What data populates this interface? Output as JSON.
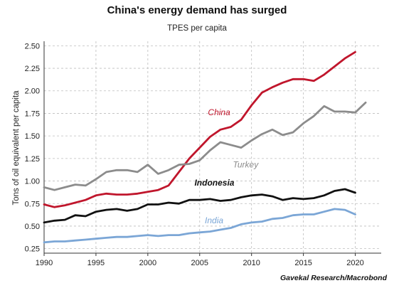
{
  "chart_data": {
    "type": "line",
    "title": "China's energy demand has surged",
    "subtitle": "TPES per capita",
    "ylabel": "Tons of oil equivalent per capita",
    "xlabel": "",
    "source": "Gavekal Research/Macrobond",
    "xlim": [
      1990,
      2022.5
    ],
    "ylim": [
      0.2,
      2.55
    ],
    "x_ticks": [
      1990,
      1995,
      2000,
      2005,
      2010,
      2015,
      2020
    ],
    "y_ticks": [
      0.25,
      0.5,
      0.75,
      1.0,
      1.25,
      1.5,
      1.75,
      2.0,
      2.25,
      2.5
    ],
    "y_tick_labels": [
      "0.25",
      "0.50",
      "0.75",
      "1.00",
      "1.25",
      "1.50",
      "1.75",
      "2.00",
      "2.25",
      "2.50"
    ],
    "grid": true,
    "series": [
      {
        "name": "China",
        "color": "#c0162c",
        "label_at": [
          2005.8,
          1.73
        ],
        "x": [
          1990,
          1991,
          1992,
          1993,
          1994,
          1995,
          1996,
          1997,
          1998,
          1999,
          2000,
          2001,
          2002,
          2003,
          2004,
          2005,
          2006,
          2007,
          2008,
          2009,
          2010,
          2011,
          2012,
          2013,
          2014,
          2015,
          2016,
          2017,
          2018,
          2019,
          2020
        ],
        "y": [
          0.74,
          0.71,
          0.73,
          0.76,
          0.79,
          0.84,
          0.86,
          0.85,
          0.85,
          0.86,
          0.88,
          0.9,
          0.95,
          1.1,
          1.25,
          1.37,
          1.49,
          1.57,
          1.6,
          1.68,
          1.84,
          1.98,
          2.04,
          2.09,
          2.13,
          2.13,
          2.11,
          2.18,
          2.27,
          2.36,
          2.43
        ]
      },
      {
        "name": "Turkey",
        "color": "#8c8c8c",
        "label_at": [
          2008.2,
          1.15
        ],
        "x": [
          1990,
          1991,
          1992,
          1993,
          1994,
          1995,
          1996,
          1997,
          1998,
          1999,
          2000,
          2001,
          2002,
          2003,
          2004,
          2005,
          2006,
          2007,
          2008,
          2009,
          2010,
          2011,
          2012,
          2013,
          2014,
          2015,
          2016,
          2017,
          2018,
          2019,
          2020,
          2021
        ],
        "y": [
          0.93,
          0.9,
          0.93,
          0.96,
          0.95,
          1.02,
          1.1,
          1.12,
          1.12,
          1.1,
          1.18,
          1.08,
          1.12,
          1.18,
          1.19,
          1.23,
          1.34,
          1.43,
          1.4,
          1.37,
          1.45,
          1.52,
          1.57,
          1.51,
          1.54,
          1.64,
          1.72,
          1.83,
          1.77,
          1.77,
          1.76,
          1.87
        ]
      },
      {
        "name": "Indonesia",
        "color": "#111111",
        "label_at": [
          2004.5,
          0.95
        ],
        "x": [
          1990,
          1991,
          1992,
          1993,
          1994,
          1995,
          1996,
          1997,
          1998,
          1999,
          2000,
          2001,
          2002,
          2003,
          2004,
          2005,
          2006,
          2007,
          2008,
          2009,
          2010,
          2011,
          2012,
          2013,
          2014,
          2015,
          2016,
          2017,
          2018,
          2019,
          2020
        ],
        "y": [
          0.54,
          0.56,
          0.57,
          0.62,
          0.61,
          0.66,
          0.68,
          0.69,
          0.67,
          0.69,
          0.74,
          0.74,
          0.76,
          0.75,
          0.79,
          0.79,
          0.8,
          0.78,
          0.79,
          0.82,
          0.84,
          0.85,
          0.83,
          0.79,
          0.81,
          0.8,
          0.81,
          0.84,
          0.89,
          0.91,
          0.87
        ]
      },
      {
        "name": "India",
        "color": "#7ba6d6",
        "label_at": [
          2005.5,
          0.53
        ],
        "x": [
          1990,
          1991,
          1992,
          1993,
          1994,
          1995,
          1996,
          1997,
          1998,
          1999,
          2000,
          2001,
          2002,
          2003,
          2004,
          2005,
          2006,
          2007,
          2008,
          2009,
          2010,
          2011,
          2012,
          2013,
          2014,
          2015,
          2016,
          2017,
          2018,
          2019,
          2020
        ],
        "y": [
          0.32,
          0.33,
          0.33,
          0.34,
          0.35,
          0.36,
          0.37,
          0.38,
          0.38,
          0.39,
          0.4,
          0.39,
          0.4,
          0.4,
          0.42,
          0.43,
          0.44,
          0.46,
          0.48,
          0.52,
          0.54,
          0.55,
          0.58,
          0.59,
          0.62,
          0.63,
          0.63,
          0.66,
          0.69,
          0.68,
          0.63
        ]
      }
    ]
  }
}
